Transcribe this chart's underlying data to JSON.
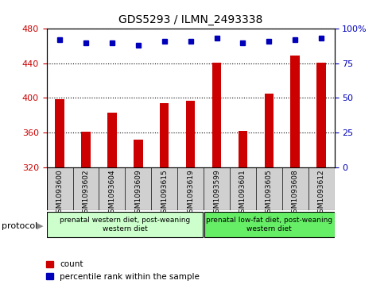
{
  "title": "GDS5293 / ILMN_2493338",
  "samples": [
    "GSM1093600",
    "GSM1093602",
    "GSM1093604",
    "GSM1093609",
    "GSM1093615",
    "GSM1093619",
    "GSM1093599",
    "GSM1093601",
    "GSM1093605",
    "GSM1093608",
    "GSM1093612"
  ],
  "counts": [
    399,
    361,
    383,
    352,
    394,
    397,
    441,
    362,
    405,
    449,
    441
  ],
  "percentiles": [
    92,
    90,
    90,
    88,
    91,
    91,
    93,
    90,
    91,
    92,
    93
  ],
  "ylim_left": [
    320,
    480
  ],
  "ylim_right": [
    0,
    100
  ],
  "yticks_left": [
    320,
    360,
    400,
    440,
    480
  ],
  "yticks_right": [
    0,
    25,
    50,
    75,
    100
  ],
  "bar_color": "#cc0000",
  "dot_color": "#0000bb",
  "group1_label": "prenatal western diet, post-weaning\nwestern diet",
  "group1_color": "#ccffcc",
  "group2_label": "prenatal low-fat diet, post-weaning\nwestern diet",
  "group2_color": "#66ee66",
  "group1_count": 6,
  "group2_count": 5,
  "legend_count_label": "count",
  "legend_pct_label": "percentile rank within the sample",
  "protocol_label": "protocol"
}
